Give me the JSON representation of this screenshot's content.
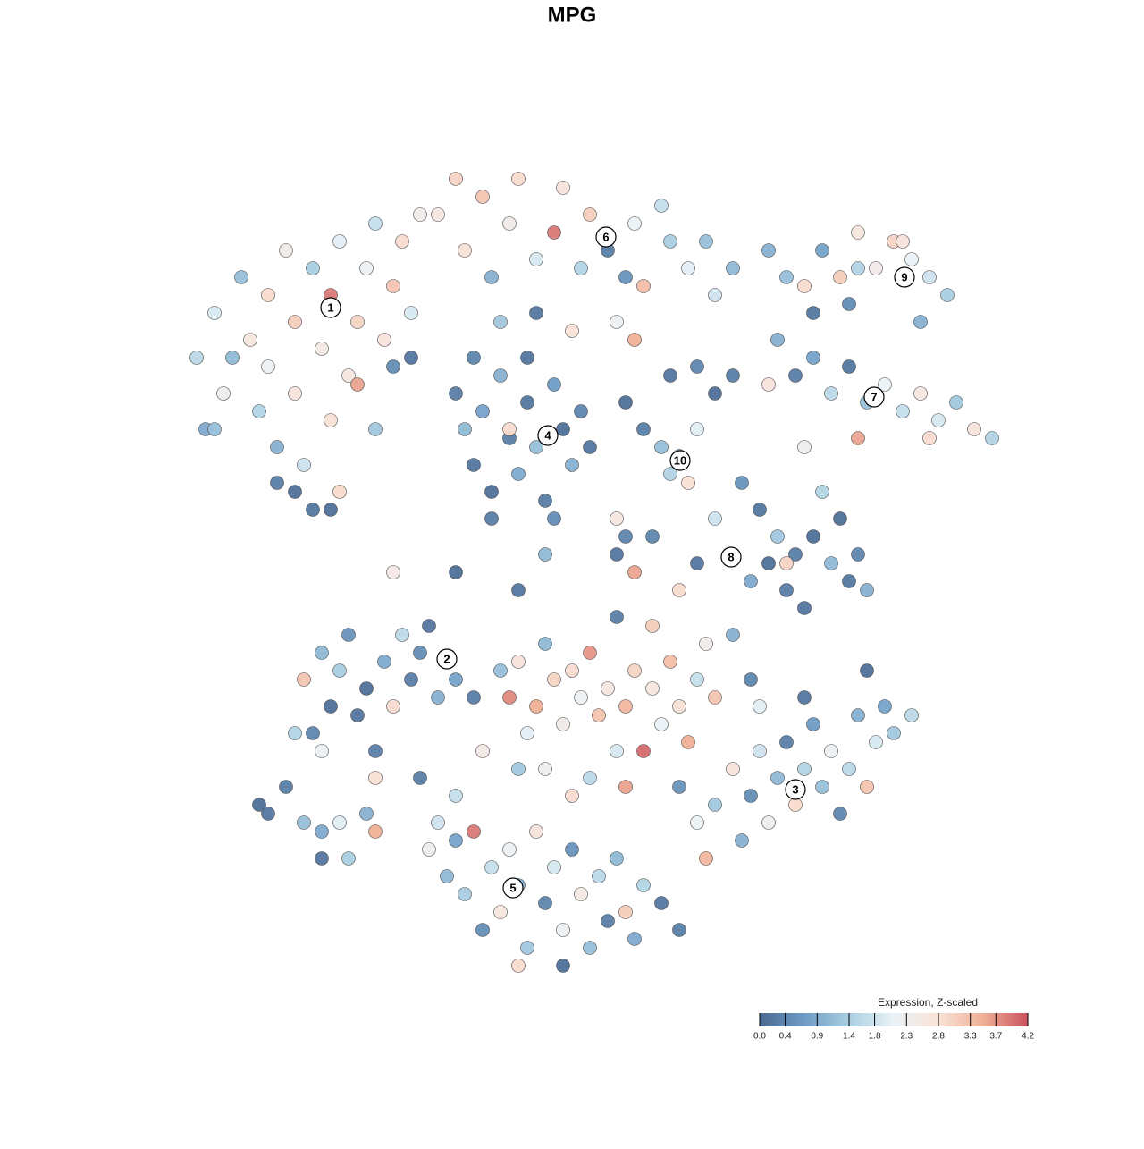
{
  "chart_data": {
    "type": "scatter",
    "title": "MPG",
    "xlim": [
      0,
      128
    ],
    "ylim": [
      128,
      0
    ],
    "x": [
      22,
      24,
      25,
      27,
      28,
      29,
      30,
      30,
      31,
      32,
      33,
      33,
      34,
      35,
      36,
      37,
      37,
      38,
      38,
      39,
      40,
      40,
      41,
      42,
      42,
      43,
      44,
      45,
      46,
      47,
      33,
      35,
      31,
      37,
      23,
      26,
      44,
      46,
      49,
      51,
      52,
      54,
      55,
      57,
      58,
      60,
      62,
      63,
      65,
      66,
      68,
      70,
      71,
      72,
      74,
      75,
      77,
      79,
      80,
      82,
      56,
      60,
      64,
      69,
      71,
      53,
      51,
      52,
      53,
      54,
      55,
      56,
      57,
      57,
      58,
      59,
      60,
      61,
      62,
      63,
      64,
      65,
      59,
      55,
      62,
      66,
      70,
      72,
      75,
      78,
      80,
      82,
      74,
      76,
      77,
      75,
      78,
      88,
      90,
      92,
      94,
      96,
      98,
      100,
      102,
      104,
      106,
      103,
      101,
      91,
      95,
      86,
      96,
      87,
      89,
      91,
      93,
      95,
      97,
      99,
      101,
      103,
      105,
      107,
      109,
      111,
      104,
      86,
      96,
      90,
      83,
      85,
      87,
      86,
      89,
      91,
      93,
      95,
      96,
      97,
      94,
      88,
      90,
      82,
      84,
      88,
      92,
      80,
      78,
      76,
      71,
      69,
      73,
      34,
      35,
      36,
      37,
      38,
      39,
      40,
      41,
      42,
      43,
      44,
      45,
      46,
      47,
      48,
      49,
      51,
      53,
      42,
      33,
      36,
      56,
      57,
      58,
      59,
      60,
      61,
      62,
      63,
      64,
      65,
      66,
      67,
      68,
      69,
      70,
      71,
      72,
      73,
      74,
      75,
      76,
      77,
      78,
      79,
      80,
      82,
      84,
      61,
      66,
      70,
      64,
      58,
      54,
      69,
      73,
      76,
      78,
      79,
      80,
      82,
      83,
      84,
      85,
      86,
      87,
      88,
      89,
      90,
      91,
      92,
      93,
      94,
      95,
      96,
      97,
      98,
      99,
      100,
      102,
      90,
      97,
      85,
      48,
      49,
      50,
      51,
      52,
      53,
      54,
      55,
      56,
      57,
      58,
      59,
      60,
      61,
      62,
      63,
      64,
      65,
      66,
      67,
      68,
      69,
      70,
      71,
      72,
      74,
      76,
      58,
      63,
      47,
      51,
      29,
      30,
      32,
      34,
      36,
      38,
      39,
      41,
      42,
      36,
      44,
      51,
      61,
      58,
      70,
      69,
      24
    ],
    "y": [
      40,
      35,
      44,
      31,
      38,
      46,
      33,
      41,
      50,
      28,
      36,
      44,
      52,
      30,
      39,
      33,
      47,
      27,
      55,
      42,
      36,
      43,
      30,
      25,
      48,
      38,
      32,
      27,
      35,
      24,
      55,
      57,
      54,
      57,
      48,
      40,
      41,
      40,
      24,
      20,
      28,
      22,
      31,
      25,
      20,
      29,
      26,
      21,
      30,
      24,
      28,
      31,
      25,
      32,
      23,
      27,
      30,
      27,
      33,
      30,
      36,
      35,
      37,
      36,
      38,
      40,
      44,
      48,
      52,
      46,
      55,
      42,
      49,
      48,
      53,
      45,
      50,
      56,
      43,
      48,
      52,
      46,
      40,
      58,
      58,
      50,
      45,
      48,
      42,
      41,
      44,
      42,
      50,
      51,
      54,
      53,
      48,
      31,
      32,
      28,
      31,
      30,
      30,
      27,
      29,
      31,
      33,
      36,
      27,
      35,
      34,
      28,
      26,
      38,
      42,
      40,
      44,
      41,
      45,
      43,
      46,
      44,
      47,
      45,
      48,
      49,
      49,
      43,
      49,
      50,
      54,
      57,
      60,
      63,
      62,
      60,
      63,
      65,
      62,
      66,
      58,
      66,
      68,
      62,
      65,
      63,
      55,
      58,
      63,
      66,
      64,
      62,
      60,
      76,
      82,
      73,
      79,
      75,
      71,
      80,
      77,
      84,
      74,
      79,
      71,
      76,
      73,
      70,
      78,
      76,
      78,
      87,
      82,
      84,
      75,
      78,
      74,
      82,
      79,
      72,
      76,
      81,
      75,
      78,
      73,
      80,
      77,
      84,
      79,
      75,
      84,
      77,
      81,
      74,
      79,
      83,
      76,
      72,
      78,
      71,
      76,
      86,
      87,
      88,
      89,
      86,
      84,
      69,
      70,
      88,
      92,
      96,
      90,
      86,
      94,
      89,
      84,
      92,
      87,
      83,
      90,
      86,
      81,
      88,
      84,
      91,
      86,
      80,
      88,
      83,
      79,
      82,
      80,
      78,
      75,
      79,
      95,
      92,
      98,
      94,
      100,
      93,
      104,
      97,
      102,
      95,
      99,
      106,
      93,
      101,
      97,
      104,
      95,
      100,
      106,
      98,
      103,
      96,
      102,
      105,
      99,
      101,
      104,
      108,
      108,
      87,
      89,
      90,
      91,
      88,
      92,
      93,
      92,
      96,
      91,
      93,
      96,
      64,
      64,
      62,
      66,
      60,
      58,
      48
    ],
    "values": [
      1.6,
      1.9,
      2.3,
      1.2,
      2.6,
      1.5,
      2.9,
      2.2,
      1.0,
      2.4,
      3.1,
      2.7,
      1.8,
      1.4,
      2.5,
      3.9,
      2.8,
      2.0,
      2.9,
      2.6,
      3.0,
      3.6,
      2.2,
      1.7,
      1.3,
      2.7,
      3.2,
      2.9,
      1.9,
      2.4,
      0.1,
      0.2,
      0.3,
      0.1,
      0.9,
      1.1,
      0.5,
      0.2,
      2.6,
      3.0,
      2.8,
      3.2,
      1.0,
      2.4,
      2.9,
      1.9,
      3.9,
      2.7,
      1.5,
      3.1,
      0.3,
      0.6,
      2.1,
      3.3,
      1.7,
      1.4,
      2.0,
      1.2,
      1.8,
      1.1,
      1.3,
      0.2,
      2.8,
      2.2,
      3.5,
      0.4,
      0.3,
      1.1,
      0.2,
      0.8,
      0.1,
      1.0,
      0.3,
      2.9,
      0.9,
      0.2,
      1.2,
      0.3,
      0.7,
      0.1,
      1.0,
      0.4,
      0.2,
      0.3,
      0.5,
      0.2,
      0.1,
      0.3,
      0.2,
      0.4,
      0.1,
      0.3,
      1.2,
      0.9,
      2.8,
      1.5,
      2.0,
      1.2,
      2.9,
      0.8,
      3.1,
      1.5,
      2.4,
      3.0,
      2.1,
      1.8,
      1.4,
      1.0,
      2.7,
      0.2,
      0.5,
      1.0,
      2.6,
      1.0,
      0.3,
      0.8,
      1.6,
      0.2,
      1.2,
      2.1,
      1.7,
      2.6,
      1.9,
      1.3,
      2.7,
      1.5,
      2.9,
      2.7,
      3.6,
      2.3,
      0.6,
      0.2,
      1.3,
      0.1,
      0.3,
      0.1,
      1.1,
      0.2,
      0.4,
      1.0,
      0.1,
      0.3,
      0.2,
      2.1,
      0.9,
      3.0,
      1.5,
      1.8,
      0.2,
      2.9,
      3.6,
      0.2,
      0.4,
      3.2,
      0.4,
      1.1,
      0.1,
      1.4,
      0.6,
      0.2,
      0.1,
      0.3,
      0.9,
      2.9,
      1.6,
      0.3,
      0.5,
      0.2,
      1.0,
      0.8,
      0.3,
      2.8,
      1.5,
      2.2,
      1.2,
      3.8,
      2.7,
      2.0,
      3.5,
      1.1,
      3.0,
      2.4,
      2.9,
      2.2,
      3.7,
      3.2,
      2.6,
      1.9,
      3.4,
      3.0,
      4.0,
      2.6,
      2.1,
      3.3,
      2.8,
      3.5,
      1.7,
      2.4,
      3.2,
      1.0,
      0.4,
      2.3,
      1.6,
      3.6,
      2.9,
      1.3,
      2.5,
      0.3,
      3.1,
      0.6,
      2.1,
      3.4,
      1.3,
      2.7,
      1.0,
      0.5,
      1.8,
      2.3,
      1.1,
      0.3,
      2.9,
      1.5,
      0.7,
      1.2,
      2.2,
      0.4,
      1.6,
      1.0,
      3.2,
      1.9,
      0.8,
      1.3,
      1.6,
      0.2,
      0.1,
      2.0,
      2.3,
      1.8,
      1.1,
      0.8,
      1.4,
      3.9,
      0.5,
      1.7,
      2.6,
      2.2,
      1.0,
      1.3,
      2.7,
      0.4,
      1.9,
      2.2,
      0.6,
      2.5,
      1.2,
      1.6,
      0.3,
      1.1,
      3.1,
      0.9,
      1.5,
      0.2,
      0.3,
      2.9,
      0.1,
      0.3,
      1.7,
      0.1,
      0.2,
      0.3,
      1.2,
      0.9,
      2.0,
      1.4,
      1.0,
      3.5,
      0.2,
      2.5,
      0.1,
      1.1,
      0.2,
      0.4,
      2.6,
      1.2
    ],
    "clusters": {
      "labels": [
        "1",
        "2",
        "3",
        "4",
        "5",
        "6",
        "7",
        "8",
        "9",
        "10"
      ],
      "x": [
        37,
        50,
        89,
        61.3,
        57.4,
        67.8,
        97.8,
        81.8,
        101.2,
        76.1
      ],
      "y": [
        34.4,
        73.7,
        88.3,
        48.7,
        99.3,
        26.5,
        44.4,
        62.3,
        31,
        51.5
      ]
    },
    "colorbar": {
      "title": "Expression, Z-scaled",
      "lim": [
        0,
        4.2
      ],
      "ticks": [
        {
          "value": 0,
          "label": "0.0"
        },
        0.4,
        0.9,
        1.4,
        1.8,
        2.3,
        2.8,
        3.3,
        3.7,
        4.2
      ],
      "colors": [
        "#4a6990",
        "#6e9bc5",
        "#a9cfe2",
        "#eaf2f7",
        "#f9e2d6",
        "#efb096",
        "#c9525e"
      ]
    }
  }
}
